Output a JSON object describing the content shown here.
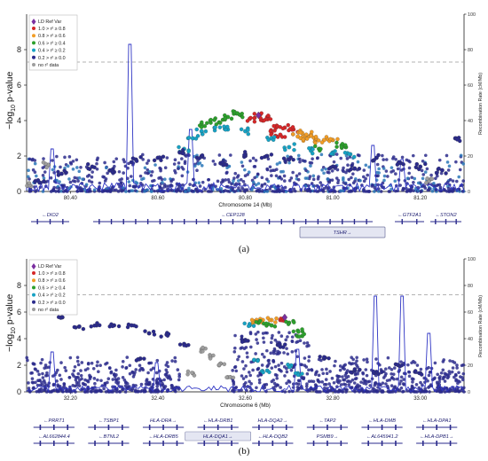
{
  "panels": [
    {
      "panel_label": "(a)",
      "xlabel": "Chromosome 14 (Mb)",
      "ylabel_main": "log",
      "ylabel_sub": "10",
      "ylabel_tail": " p-value",
      "y_ticks": [
        "0",
        "2",
        "4",
        "6",
        "8"
      ],
      "right_label": "Recombination Rate (cM/Mb)",
      "right_ticks": [
        "0",
        "20",
        "40",
        "60",
        "80",
        "100"
      ],
      "x_ticks": [
        "80.40",
        "80.60",
        "80.80",
        "81.00",
        "81.20"
      ],
      "significance_line": 7.3,
      "legend_title": "LD Ref Var",
      "legend": [
        {
          "label": "1.0 > r² ≥ 0.8",
          "color": "#d62728"
        },
        {
          "label": "0.8 > r² ≥ 0.6",
          "color": "#f29d26"
        },
        {
          "label": "0.6 > r² ≥ 0.4",
          "color": "#2ca02c"
        },
        {
          "label": "0.4 > r² ≥ 0.2",
          "color": "#17a2c4"
        },
        {
          "label": "0.2 > r² ≥ 0.0",
          "color": "#2b2b8c"
        },
        {
          "label": "no r² data",
          "color": "#9e9e9e"
        }
      ],
      "genes": [
        {
          "name": "←DIO2",
          "row": 0
        },
        {
          "name": "←CEP128",
          "row": 0
        },
        {
          "name": "←GTF2A1",
          "row": 0
        },
        {
          "name": "←STON2",
          "row": 0
        },
        {
          "name": "TSHR→",
          "row": 1,
          "highlight": true
        }
      ]
    },
    {
      "panel_label": "(b)",
      "xlabel": "Chromosome 6 (Mb)",
      "ylabel_main": "log",
      "ylabel_sub": "10",
      "ylabel_tail": " p-value",
      "y_ticks": [
        "0",
        "2",
        "4",
        "6",
        "8"
      ],
      "right_label": "Recombination Rate (cM/Mb)",
      "right_ticks": [
        "0",
        "20",
        "40",
        "60",
        "80",
        "100"
      ],
      "x_ticks": [
        "32.20",
        "32.40",
        "32.60",
        "32.80",
        "33.00"
      ],
      "significance_line": 7.3,
      "legend_title": "LD Ref Var",
      "legend": [
        {
          "label": "1.0 > r² ≥ 0.8",
          "color": "#d62728"
        },
        {
          "label": "0.8 > r² ≥ 0.6",
          "color": "#f29d26"
        },
        {
          "label": "0.6 > r² ≥ 0.4",
          "color": "#2ca02c"
        },
        {
          "label": "0.4 > r² ≥ 0.2",
          "color": "#17a2c4"
        },
        {
          "label": "0.2 > r² ≥ 0.0",
          "color": "#2b2b8c"
        },
        {
          "label": "no r² data",
          "color": "#9e9e9e"
        }
      ],
      "genes": [
        {
          "name": "←PRRT1",
          "row": 0
        },
        {
          "name": "←TSBP1",
          "row": 0
        },
        {
          "name": "HLA-DRA→",
          "row": 0
        },
        {
          "name": "←HLA-DRB1",
          "row": 0
        },
        {
          "name": "HLA-DQA2→",
          "row": 0
        },
        {
          "name": "←TAP2",
          "row": 0
        },
        {
          "name": "←HLA-DMB",
          "row": 0
        },
        {
          "name": "←HLA-DPA1",
          "row": 0
        },
        {
          "name": "←AL662844.4",
          "row": 1
        },
        {
          "name": "←BTNL2",
          "row": 1
        },
        {
          "name": "←HLA-DRB5",
          "row": 1
        },
        {
          "name": "HLA-DQA1→",
          "row": 1,
          "highlight": true
        },
        {
          "name": "←HLA-DQB2",
          "row": 1
        },
        {
          "name": "PSMB9→",
          "row": 1
        },
        {
          "name": "←AL645941.2",
          "row": 1
        },
        {
          "name": "←HLA-DPB1→",
          "row": 1
        }
      ]
    }
  ],
  "chart_data": [
    {
      "type": "scatter",
      "title": "",
      "xlabel": "Chromosome 14 (Mb)",
      "ylabel": "-log10 p-value",
      "xlim": [
        80.3,
        81.3
      ],
      "ylim": [
        0,
        10
      ],
      "y2label": "Recombination Rate (cM/Mb)",
      "y2lim": [
        0,
        100
      ],
      "lead_variant": {
        "x": 80.83,
        "y": 4.3
      },
      "series": [
        {
          "name": "1.0 > r² ≥ 0.8",
          "points": [
            [
              80.83,
              4.3
            ],
            [
              80.85,
              4.2
            ],
            [
              80.81,
              4.1
            ],
            [
              80.87,
              3.6
            ],
            [
              80.89,
              3.6
            ],
            [
              80.91,
              3.5
            ],
            [
              80.86,
              3.3
            ],
            [
              80.88,
              3.2
            ],
            [
              80.84,
              4.0
            ]
          ]
        },
        {
          "name": "0.8 > r² ≥ 0.6",
          "points": [
            [
              80.92,
              3.1
            ],
            [
              80.94,
              3.0
            ],
            [
              80.96,
              2.9
            ],
            [
              80.98,
              2.9
            ],
            [
              81.0,
              2.9
            ],
            [
              80.93,
              3.3
            ],
            [
              80.95,
              3.2
            ]
          ]
        },
        {
          "name": "0.6 > r² ≥ 0.4",
          "points": [
            [
              80.72,
              4.0
            ],
            [
              80.74,
              3.9
            ],
            [
              80.76,
              4.2
            ],
            [
              80.78,
              4.4
            ],
            [
              80.7,
              3.8
            ],
            [
              80.79,
              4.3
            ],
            [
              81.02,
              2.6
            ],
            [
              81.03,
              2.5
            ],
            [
              80.97,
              2.4
            ]
          ]
        },
        {
          "name": "0.4 > r² ≥ 0.2",
          "points": [
            [
              80.7,
              3.4
            ],
            [
              80.73,
              3.6
            ],
            [
              80.76,
              3.5
            ],
            [
              80.8,
              3.4
            ],
            [
              80.86,
              3.0
            ],
            [
              80.9,
              2.5
            ],
            [
              80.95,
              2.3
            ],
            [
              81.0,
              2.2
            ],
            [
              81.04,
              2.1
            ],
            [
              80.66,
              2.4
            ],
            [
              80.68,
              3.0
            ]
          ]
        },
        {
          "name": "0.2 > r² ≥ 0.0",
          "points": [
            [
              80.33,
              0.5
            ],
            [
              80.38,
              1.0
            ],
            [
              80.45,
              1.4
            ],
            [
              80.5,
              1.1
            ],
            [
              80.55,
              1.8
            ],
            [
              80.6,
              1.9
            ],
            [
              80.65,
              2.2
            ],
            [
              80.7,
              2.0
            ],
            [
              80.75,
              1.5
            ],
            [
              80.8,
              2.1
            ],
            [
              80.85,
              2.0
            ],
            [
              80.9,
              1.8
            ],
            [
              81.0,
              1.4
            ],
            [
              81.05,
              1.3
            ],
            [
              81.1,
              1.9
            ],
            [
              81.15,
              1.6
            ],
            [
              81.2,
              1.4
            ],
            [
              81.25,
              1.2
            ],
            [
              81.28,
              3.0
            ]
          ]
        },
        {
          "name": "no r² data",
          "points": [
            [
              80.31,
              0.3
            ],
            [
              80.35,
              1.5
            ],
            [
              81.22,
              0.6
            ]
          ]
        }
      ],
      "recombination_peaks": [
        [
          80.535,
          8.3
        ],
        [
          80.36,
          2.4
        ],
        [
          80.675,
          3.5
        ],
        [
          81.09,
          2.6
        ],
        [
          81.16,
          1.8
        ]
      ]
    },
    {
      "type": "scatter",
      "title": "",
      "xlabel": "Chromosome 6 (Mb)",
      "ylabel": "-log10 p-value",
      "xlim": [
        32.1,
        33.1
      ],
      "ylim": [
        0,
        10
      ],
      "y2label": "Recombination Rate (cM/Mb)",
      "y2lim": [
        0,
        100
      ],
      "lead_variant": {
        "x": 32.69,
        "y": 5.6
      },
      "series": [
        {
          "name": "1.0 > r² ≥ 0.8",
          "points": [
            [
              32.68,
              5.4
            ]
          ]
        },
        {
          "name": "0.8 > r² ≥ 0.6",
          "points": [
            [
              32.62,
              5.3
            ],
            [
              32.64,
              5.4
            ],
            [
              32.66,
              5.4
            ]
          ]
        },
        {
          "name": "0.6 > r² ≥ 0.4",
          "points": [
            [
              32.63,
              5.2
            ],
            [
              32.66,
              5.0
            ],
            [
              32.7,
              5.2
            ],
            [
              32.72,
              4.6
            ],
            [
              32.73,
              4.2
            ]
          ]
        },
        {
          "name": "0.4 > r² ≥ 0.2",
          "points": [
            [
              32.61,
              5.0
            ],
            [
              32.62,
              2.4
            ],
            [
              32.65,
              1.6
            ],
            [
              32.7,
              1.9
            ],
            [
              32.72,
              1.4
            ]
          ]
        },
        {
          "name": "0.2 > r² ≥ 0.0",
          "points": [
            [
              32.18,
              5.6
            ],
            [
              32.22,
              4.9
            ],
            [
              32.26,
              5.0
            ],
            [
              32.3,
              5.0
            ],
            [
              32.34,
              5.0
            ],
            [
              32.38,
              4.4
            ],
            [
              32.42,
              4.3
            ],
            [
              32.46,
              3.6
            ],
            [
              32.36,
              2.5
            ],
            [
              32.6,
              3.9
            ],
            [
              32.68,
              3.4
            ],
            [
              32.78,
              2.5
            ],
            [
              32.85,
              1.6
            ],
            [
              32.9,
              1.5
            ],
            [
              32.95,
              2.0
            ],
            [
              33.0,
              1.4
            ]
          ]
        },
        {
          "name": "no r² data",
          "points": [
            [
              32.5,
              3.2
            ],
            [
              32.52,
              2.6
            ],
            [
              32.54,
              2.0
            ],
            [
              32.48,
              1.4
            ],
            [
              32.56,
              1.1
            ]
          ]
        }
      ],
      "recombination_peaks": [
        [
          32.9,
          7.2
        ],
        [
          32.96,
          7.2
        ],
        [
          33.02,
          4.4
        ],
        [
          32.72,
          3.2
        ],
        [
          32.16,
          3.0
        ],
        [
          32.4,
          2.2
        ]
      ]
    }
  ]
}
